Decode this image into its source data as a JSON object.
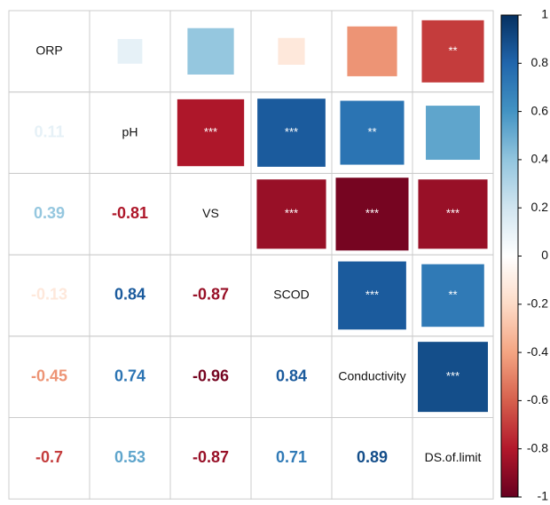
{
  "chart_data": {
    "type": "corrplot",
    "variables": [
      "ORP",
      "pH",
      "VS",
      "SCOD",
      "Conductivity",
      "DS.of.limit"
    ],
    "values": [
      [],
      [
        0.11
      ],
      [
        0.39,
        -0.81
      ],
      [
        -0.13,
        0.84,
        -0.87
      ],
      [
        -0.45,
        0.74,
        -0.96,
        0.84
      ],
      [
        -0.7,
        0.53,
        -0.87,
        0.71,
        0.89
      ]
    ],
    "significance": [
      [],
      [
        null
      ],
      [
        null,
        "***"
      ],
      [
        null,
        "***",
        "***"
      ],
      [
        null,
        "**",
        "***",
        "***"
      ],
      [
        "**",
        null,
        "***",
        "**",
        "***"
      ]
    ],
    "colorscale": [
      "#67001F",
      "#B2182B",
      "#D6604D",
      "#F4A582",
      "#FDDBC7",
      "#FFFFFF",
      "#D1E5F0",
      "#92C5DE",
      "#4393C3",
      "#2166AC",
      "#053061"
    ],
    "ylim": [
      -1,
      1
    ],
    "yticks": [
      -1,
      -0.8,
      -0.6,
      -0.4,
      -0.2,
      0,
      0.2,
      0.4,
      0.6,
      0.8,
      1
    ]
  }
}
